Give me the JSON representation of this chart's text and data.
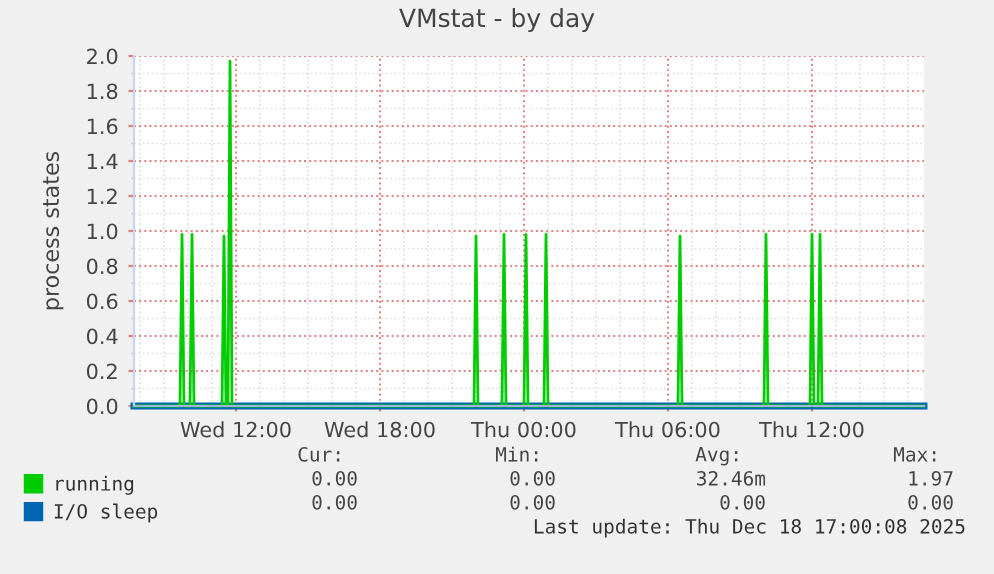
{
  "chart_data": {
    "type": "line",
    "title": "VMstat - by day",
    "ylabel": "process states",
    "xlim": [
      "2025-12-17T07:45",
      "2025-12-18T16:40"
    ],
    "xticks": [
      {
        "value": "2025-12-17T12:00",
        "label": "Wed 12:00"
      },
      {
        "value": "2025-12-17T18:00",
        "label": "Wed 18:00"
      },
      {
        "value": "2025-12-18T00:00",
        "label": "Thu 00:00"
      },
      {
        "value": "2025-12-18T06:00",
        "label": "Thu 06:00"
      },
      {
        "value": "2025-12-18T12:00",
        "label": "Thu 12:00"
      }
    ],
    "ylim": [
      0,
      2.0
    ],
    "yticks": [
      {
        "value": 0,
        "label": "0.0"
      },
      {
        "value": 0.2,
        "label": "0.2"
      },
      {
        "value": 0.4,
        "label": "0.4"
      },
      {
        "value": 0.6,
        "label": "0.6"
      },
      {
        "value": 0.8,
        "label": "0.8"
      },
      {
        "value": 1.0,
        "label": "1.0"
      },
      {
        "value": 1.2,
        "label": "1.2"
      },
      {
        "value": 1.4,
        "label": "1.4"
      },
      {
        "value": 1.6,
        "label": "1.6"
      },
      {
        "value": 1.8,
        "label": "1.8"
      },
      {
        "value": 2.0,
        "label": "2.0"
      }
    ],
    "grid": true,
    "legend": "bottom",
    "marker": "none",
    "line_style": "solid",
    "series": [
      {
        "name": "running",
        "color": "#00cc00",
        "x": [
          "2025-12-17T07:45",
          "2025-12-17T09:40",
          "2025-12-17T09:45",
          "2025-12-17T09:50",
          "2025-12-17T10:05",
          "2025-12-17T10:10",
          "2025-12-17T10:15",
          "2025-12-17T11:25",
          "2025-12-17T11:30",
          "2025-12-17T11:35",
          "2025-12-17T11:40",
          "2025-12-17T11:45",
          "2025-12-17T11:50",
          "2025-12-17T21:55",
          "2025-12-17T22:00",
          "2025-12-17T22:05",
          "2025-12-17T23:05",
          "2025-12-17T23:10",
          "2025-12-17T23:15",
          "2025-12-18T00:00",
          "2025-12-18T00:05",
          "2025-12-18T00:10",
          "2025-12-18T00:50",
          "2025-12-18T00:55",
          "2025-12-18T01:00",
          "2025-12-18T06:25",
          "2025-12-18T06:30",
          "2025-12-18T06:35",
          "2025-12-18T10:00",
          "2025-12-18T10:05",
          "2025-12-18T10:10",
          "2025-12-18T11:55",
          "2025-12-18T12:00",
          "2025-12-18T12:05",
          "2025-12-18T12:15",
          "2025-12-18T12:20",
          "2025-12-18T12:25",
          "2025-12-18T16:40"
        ],
        "values": [
          0,
          0,
          0.98,
          0,
          0,
          0.98,
          0,
          0,
          0.97,
          0,
          0,
          1.97,
          0,
          0,
          0.97,
          0,
          0,
          0.98,
          0,
          0,
          0.98,
          0,
          0,
          0.98,
          0,
          0,
          0.97,
          0,
          0,
          0.98,
          0,
          0,
          0.98,
          0,
          0,
          0.98,
          0,
          0
        ]
      },
      {
        "name": "I/O sleep",
        "color": "#0066b3",
        "x": [
          "2025-12-17T07:45",
          "2025-12-18T16:40"
        ],
        "values": [
          0,
          0
        ]
      }
    ],
    "annotations": [
      "Cur:",
      "Min:",
      "Avg:",
      "Max:",
      "0.00",
      "0.00",
      "32.46m",
      "1.97",
      "0.00",
      "0.00",
      "0.00",
      "0.00",
      "Last update: Thu Dec 18 17:00:08 2025"
    ]
  }
}
